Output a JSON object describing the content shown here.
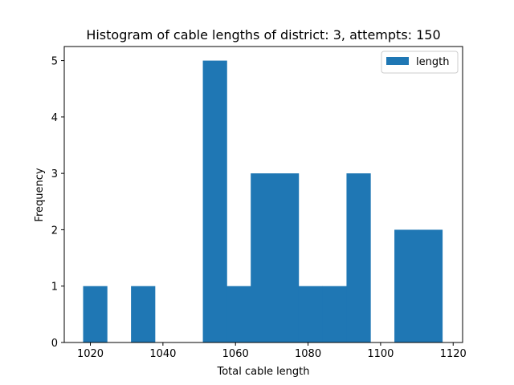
{
  "chart_data": {
    "type": "bar",
    "title": "Histogram of cable lengths of district: 3, attempts: 150",
    "xlabel": "Total cable length",
    "ylabel": "Frequency",
    "xlim": [
      1012.8,
      1122.6
    ],
    "ylim": [
      0,
      5.25
    ],
    "xticks": [
      1020,
      1040,
      1060,
      1080,
      1100,
      1120
    ],
    "yticks": [
      0,
      1,
      2,
      3,
      4,
      5
    ],
    "bin_edges": [
      1018,
      1024.6,
      1031.2,
      1037.8,
      1044.4,
      1051,
      1057.6,
      1064.2,
      1070.8,
      1077.4,
      1084,
      1090.6,
      1097.2,
      1103.8,
      1110.4,
      1117
    ],
    "values": [
      1,
      0,
      1,
      0,
      0,
      5,
      1,
      3,
      3,
      1,
      1,
      3,
      0,
      2,
      2
    ],
    "series": [
      {
        "name": "length",
        "color": "#1f77b4"
      }
    ],
    "grid": false,
    "legend_position": "top-right"
  }
}
